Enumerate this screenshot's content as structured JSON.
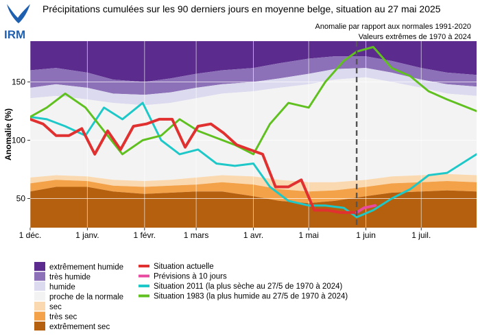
{
  "logo": {
    "text": "IRM",
    "color": "#1f5fb0"
  },
  "chart_data": {
    "type": "line",
    "title": "Précipitations cumulées sur les 90 derniers jours en moyenne belge, situation au 27 mai 2025",
    "subtitle_1": "Anomalie par rapport aux normales 1991-2020",
    "subtitle_2": "Valeurs extrêmes de 1970 à 2024",
    "ylabel": "Anomalie (%)",
    "xlabel": "",
    "ylim": [
      25,
      185
    ],
    "grid": true,
    "x_axis": {
      "type": "date",
      "start": "2024-12-01",
      "end": "2025-07-31"
    },
    "yticks": [
      50,
      100,
      150
    ],
    "xticks": [
      {
        "label": "1 déc.",
        "date": "2024-12-01"
      },
      {
        "label": "1 janv.",
        "date": "2025-01-01"
      },
      {
        "label": "1 févr.",
        "date": "2025-02-01"
      },
      {
        "label": "1 mars",
        "date": "2025-03-01"
      },
      {
        "label": "1 avr.",
        "date": "2025-04-01"
      },
      {
        "label": "1 mai",
        "date": "2025-05-01"
      },
      {
        "label": "1 juin",
        "date": "2025-06-01"
      },
      {
        "label": "1 juil.",
        "date": "2025-07-01"
      }
    ],
    "current_date": "2025-05-27",
    "bands": {
      "x": [
        "2024-12-01",
        "2024-12-15",
        "2025-01-01",
        "2025-01-15",
        "2025-02-01",
        "2025-02-15",
        "2025-03-01",
        "2025-03-15",
        "2025-04-01",
        "2025-04-15",
        "2025-05-01",
        "2025-05-15",
        "2025-06-01",
        "2025-06-15",
        "2025-07-01",
        "2025-07-15",
        "2025-07-31"
      ],
      "top": [
        185,
        185,
        185,
        185,
        185,
        185,
        185,
        185,
        185,
        185,
        185,
        185,
        185,
        185,
        185,
        185,
        185
      ],
      "p95": [
        160,
        162,
        158,
        152,
        150,
        153,
        157,
        160,
        162,
        166,
        170,
        172,
        172,
        168,
        162,
        158,
        156
      ],
      "p80": [
        145,
        148,
        145,
        140,
        139,
        141,
        145,
        148,
        150,
        153,
        157,
        161,
        162,
        158,
        152,
        148,
        146
      ],
      "p65": [
        136,
        138,
        135,
        132,
        130,
        132,
        136,
        140,
        142,
        145,
        148,
        152,
        154,
        150,
        145,
        140,
        138
      ],
      "p35": [
        68,
        70,
        69,
        66,
        65,
        66,
        68,
        70,
        69,
        66,
        64,
        64,
        66,
        69,
        70,
        71,
        70
      ],
      "p20": [
        63,
        66,
        65,
        61,
        60,
        61,
        62,
        64,
        62,
        58,
        56,
        57,
        60,
        63,
        64,
        65,
        64
      ],
      "p05": [
        56,
        60,
        60,
        56,
        54,
        55,
        56,
        56,
        52,
        48,
        46,
        48,
        52,
        55,
        56,
        57,
        56
      ],
      "bottom": [
        25,
        25,
        25,
        25,
        25,
        25,
        25,
        25,
        25,
        25,
        25,
        25,
        25,
        25,
        25,
        25,
        25
      ]
    },
    "series": [
      {
        "name": "Situation actuelle",
        "color": "#e03030",
        "x": [
          "2024-12-01",
          "2024-12-08",
          "2024-12-15",
          "2024-12-22",
          "2024-12-29",
          "2025-01-05",
          "2025-01-12",
          "2025-01-19",
          "2025-01-26",
          "2025-02-02",
          "2025-02-09",
          "2025-02-16",
          "2025-02-23",
          "2025-03-02",
          "2025-03-09",
          "2025-03-16",
          "2025-03-23",
          "2025-03-30",
          "2025-04-06",
          "2025-04-13",
          "2025-04-20",
          "2025-04-27",
          "2025-05-04",
          "2025-05-11",
          "2025-05-18",
          "2025-05-27"
        ],
        "values": [
          118,
          114,
          104,
          104,
          110,
          88,
          108,
          92,
          112,
          114,
          118,
          118,
          94,
          112,
          114,
          106,
          96,
          92,
          88,
          60,
          60,
          66,
          40,
          40,
          38,
          38
        ]
      },
      {
        "name": "Prévisions à 10 jours",
        "color": "#e84aa0",
        "x": [
          "2025-05-27",
          "2025-05-31",
          "2025-06-03",
          "2025-06-06"
        ],
        "values": [
          38,
          42,
          43,
          44
        ]
      },
      {
        "name": "Situation 2011 (la plus sèche au 27/5 de 1970 à 2024)",
        "color": "#1ec8c8",
        "x": [
          "2024-12-01",
          "2024-12-10",
          "2024-12-20",
          "2024-12-31",
          "2025-01-10",
          "2025-01-20",
          "2025-01-31",
          "2025-02-10",
          "2025-02-20",
          "2025-03-02",
          "2025-03-12",
          "2025-03-22",
          "2025-04-01",
          "2025-04-10",
          "2025-04-20",
          "2025-05-01",
          "2025-05-10",
          "2025-05-20",
          "2025-05-27",
          "2025-06-05",
          "2025-06-15",
          "2025-06-25",
          "2025-07-05",
          "2025-07-15",
          "2025-07-31"
        ],
        "values": [
          120,
          118,
          112,
          104,
          128,
          118,
          132,
          100,
          88,
          92,
          80,
          78,
          80,
          60,
          48,
          44,
          44,
          42,
          34,
          40,
          50,
          58,
          70,
          72,
          88
        ]
      },
      {
        "name": "Situation 1983 (la plus humide au 27/5 de 1970 à 2024)",
        "color": "#60c020",
        "x": [
          "2024-12-01",
          "2024-12-10",
          "2024-12-20",
          "2024-12-31",
          "2025-01-10",
          "2025-01-20",
          "2025-01-31",
          "2025-02-10",
          "2025-02-20",
          "2025-03-02",
          "2025-03-12",
          "2025-03-22",
          "2025-04-01",
          "2025-04-10",
          "2025-04-20",
          "2025-05-01",
          "2025-05-10",
          "2025-05-20",
          "2025-05-27",
          "2025-06-05",
          "2025-06-15",
          "2025-06-25",
          "2025-07-05",
          "2025-07-15",
          "2025-07-31"
        ],
        "values": [
          120,
          128,
          140,
          128,
          108,
          88,
          100,
          104,
          118,
          108,
          102,
          96,
          88,
          114,
          132,
          128,
          150,
          168,
          176,
          180,
          162,
          155,
          142,
          135,
          125
        ]
      }
    ],
    "legend": {
      "placement": "bottom",
      "bands": [
        {
          "label": "extrêmement humide",
          "color": "#5b2c8e"
        },
        {
          "label": "très humide",
          "color": "#8c70b8"
        },
        {
          "label": "humide",
          "color": "#dcdaee"
        },
        {
          "label": "proche de la normale",
          "color": "#f3f3f3"
        },
        {
          "label": "sec",
          "color": "#fad9b0"
        },
        {
          "label": "très sec",
          "color": "#f3a24a"
        },
        {
          "label": "extrêmement sec",
          "color": "#b5600f"
        }
      ]
    }
  }
}
